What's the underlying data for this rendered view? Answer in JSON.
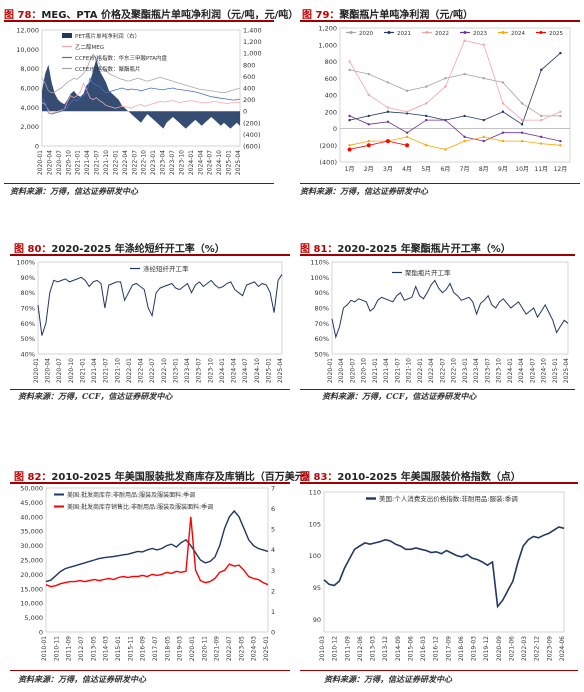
{
  "figures": [
    {
      "id": "f78",
      "fig_label": "图 78：",
      "title": "MEG、PTA 价格及聚酯瓶片单吨净利润（元/吨，元/吨）",
      "source": "资料来源：万得，信达证券研发中心"
    },
    {
      "id": "f79",
      "fig_label": "图 79：",
      "title": "聚酯瓶片单吨净利润（元/吨）",
      "source": "资料来源：万得，信达证券研发中心"
    },
    {
      "id": "f80",
      "fig_label": "图 80：",
      "title": "2020-2025 年涤纶短纤开工率（%）",
      "source": "资料来源：万得，CCF，信达证券研发中心"
    },
    {
      "id": "f81",
      "fig_label": "图 81：",
      "title": "2020-2025 年聚酯瓶片开工率（%）",
      "source": "资料来源：万得，CCF，信达证券研发中心"
    },
    {
      "id": "f82",
      "fig_label": "图 82：",
      "title": "2010-2025 年美国服装批发商库存及库销比（百万美元）",
      "source": "资料来源：万得，信达证券研发中心"
    },
    {
      "id": "f83",
      "fig_label": "图 83：",
      "title": "2010-2025 年美国服装价格指数（点）",
      "source": "资料来源：万得，信达证券研发中心"
    }
  ],
  "colors": {
    "accent": "#c00000",
    "navy": "#1f3864",
    "red": "#ff0000",
    "pink": "#f4a6a6",
    "blue": "#4472c4",
    "gray": "#a6a6a6"
  },
  "chart_data": [
    {
      "id": "f78",
      "type": "line",
      "x_ticks": [
        "2020-01",
        "2020-04",
        "2020-07",
        "2020-10",
        "2021-01",
        "2021-04",
        "2021-07",
        "2021-10",
        "2022-01",
        "2022-04",
        "2022-07",
        "2022-10",
        "2023-01",
        "2023-04",
        "2023-07",
        "2023-10",
        "2024-01",
        "2024-04",
        "2024-07",
        "2024-10",
        "2025-01",
        "2025-04"
      ],
      "y_left": {
        "ticks": [
          "12,000",
          "10,000",
          "8,000",
          "6,000",
          "4,000",
          "2,000",
          "0"
        ],
        "range": [
          0,
          12000
        ]
      },
      "y_right": {
        "ticks": [
          "1,400",
          "1,200",
          "1,000",
          "800",
          "600",
          "400",
          "200",
          "0",
          "(200)",
          "(400)",
          "(600)"
        ],
        "range": [
          -600,
          1400
        ]
      },
      "series": [
        {
          "name": "PET瓶片单吨净利润（右）",
          "axis": "right",
          "kind": "area",
          "color": "#1f3864",
          "values": [
            350,
            650,
            800,
            500,
            300,
            200,
            150,
            120,
            200,
            300,
            350,
            280,
            250,
            300,
            450,
            500,
            700,
            900,
            700,
            600,
            500,
            350,
            300,
            250,
            200,
            100,
            50,
            0,
            -50,
            -100,
            -150,
            -200,
            -120,
            -50,
            -100,
            -150,
            -200,
            -250,
            -300,
            -200,
            -150,
            -100,
            -150,
            -200,
            -250,
            -300,
            -250,
            -200,
            -150,
            -200,
            -250,
            -200,
            -150,
            -100,
            -150,
            -200,
            -250,
            -200,
            -250,
            -300,
            -250,
            -200,
            -250
          ]
        },
        {
          "name": "乙二醇MEG",
          "axis": "left",
          "kind": "line",
          "color": "#f4a6a6",
          "values": [
            4500,
            4300,
            3700,
            3400,
            3500,
            3600,
            3700,
            3800,
            4600,
            5200,
            5000,
            5200,
            5600,
            6500,
            5800,
            5000,
            4800,
            5000,
            4700,
            4500,
            4200,
            4100,
            4000,
            3900,
            4000,
            4100,
            4050,
            4000,
            3900,
            4100,
            4200,
            4300,
            4100,
            4200,
            4300,
            4400,
            4500,
            4600,
            4550,
            4600,
            4650,
            4700,
            4600,
            4500,
            4550,
            4600,
            4650,
            4700,
            4600,
            4550,
            4500,
            4450,
            4500,
            4550,
            4600,
            4550,
            4500,
            4450,
            4400,
            4450,
            4500,
            4550,
            4500
          ]
        },
        {
          "name": "CCFEI价格指数：华东三甲酸PTA内盘",
          "axis": "left",
          "kind": "line",
          "color": "#4472c4",
          "values": [
            4900,
            4500,
            3400,
            3300,
            3400,
            3500,
            3600,
            3800,
            4000,
            4500,
            4800,
            4700,
            5000,
            5200,
            5500,
            7000,
            6500,
            6300,
            6200,
            5800,
            5500,
            5600,
            5700,
            5800,
            5900,
            6000,
            5900,
            5800,
            5900,
            5850,
            5800,
            5700,
            5800,
            5900,
            6000,
            5950,
            5900,
            5850,
            5800,
            5900,
            5950,
            6000,
            5900,
            5850,
            5800,
            5750,
            5700,
            5650,
            5600,
            5500,
            5400,
            5300,
            5200,
            5100,
            5050,
            5000,
            4950,
            4900,
            4850,
            4800,
            4750,
            4800,
            4850
          ]
        },
        {
          "name": "CCFEI价格指数：聚酯瓶片",
          "axis": "left",
          "kind": "line",
          "color": "#a6a6a6",
          "values": [
            7000,
            6500,
            5700,
            5500,
            5600,
            5800,
            6000,
            6300,
            6600,
            6800,
            7000,
            6900,
            7200,
            7500,
            8000,
            8800,
            9500,
            9000,
            8500,
            8000,
            7800,
            7500,
            7300,
            7200,
            7000,
            6900,
            6800,
            6700,
            6800,
            6900,
            7000,
            6900,
            6800,
            6700,
            6800,
            6900,
            7000,
            7100,
            7000,
            6900,
            6800,
            6700,
            6600,
            6500,
            6400,
            6300,
            6200,
            6100,
            6000,
            5900,
            5850,
            5800,
            5750,
            5700,
            5650,
            5600,
            5550,
            5500,
            5600,
            5700,
            5800,
            5900,
            5950
          ]
        }
      ]
    },
    {
      "id": "f79",
      "type": "line",
      "x_ticks": [
        "1月",
        "2月",
        "3月",
        "4月",
        "5月",
        "6月",
        "7月",
        "8月",
        "9月",
        "10月",
        "11月",
        "12月"
      ],
      "y": {
        "ticks": [
          "1,200",
          "1,000",
          "800",
          "600",
          "400",
          "200",
          "0",
          "(200)",
          "(400)"
        ],
        "range": [
          -400,
          1200
        ]
      },
      "series": [
        {
          "name": "2020",
          "color": "#a6a6a6",
          "values": [
            700,
            650,
            550,
            450,
            500,
            600,
            650,
            600,
            550,
            300,
            150,
            150
          ]
        },
        {
          "name": "2021",
          "color": "#1f3864",
          "values": [
            100,
            150,
            200,
            180,
            150,
            100,
            150,
            100,
            200,
            50,
            700,
            900
          ]
        },
        {
          "name": "2022",
          "color": "#f4a6a6",
          "values": [
            800,
            400,
            250,
            200,
            300,
            500,
            1050,
            1000,
            300,
            100,
            100,
            200
          ]
        },
        {
          "name": "2023",
          "color": "#7030a0",
          "values": [
            150,
            50,
            80,
            -50,
            100,
            100,
            -100,
            -150,
            -50,
            -50,
            -100,
            -150
          ]
        },
        {
          "name": "2024",
          "color": "#ffa500",
          "values": [
            -200,
            -150,
            -150,
            -100,
            -200,
            -250,
            -150,
            -100,
            -150,
            -150,
            -180,
            -200
          ]
        },
        {
          "name": "2025",
          "color": "#ff0000",
          "values": [
            -250,
            -200,
            -150,
            -200
          ]
        }
      ]
    },
    {
      "id": "f80",
      "type": "line",
      "x_ticks": [
        "2020-01",
        "2020-04",
        "2020-07",
        "2020-10",
        "2021-01",
        "2021-04",
        "2021-07",
        "2021-10",
        "2022-01",
        "2022-04",
        "2022-07",
        "2022-10",
        "2023-01",
        "2023-04",
        "2023-07",
        "2023-10",
        "2024-01",
        "2024-04",
        "2024-07",
        "2024-10",
        "2025-01",
        "2025-04"
      ],
      "y": {
        "ticks": [
          "100%",
          "90%",
          "80%",
          "70%",
          "60%",
          "50%",
          "40%"
        ],
        "range": [
          40,
          100
        ]
      },
      "series": [
        {
          "name": "涤纶短纤开工率",
          "color": "#1f3864",
          "values": [
            72,
            52,
            60,
            80,
            88,
            87,
            88,
            89,
            87,
            88,
            89,
            90,
            88,
            84,
            87,
            88,
            86,
            70,
            85,
            86,
            87,
            87,
            75,
            80,
            85,
            86,
            84,
            82,
            70,
            65,
            80,
            83,
            84,
            85,
            86,
            83,
            82,
            84,
            86,
            80,
            85,
            87,
            84,
            86,
            88,
            85,
            83,
            84,
            86,
            87,
            82,
            80,
            78,
            85,
            86,
            87,
            84,
            86,
            85,
            80,
            67,
            88,
            92
          ]
        }
      ]
    },
    {
      "id": "f81",
      "type": "line",
      "x_ticks": [
        "2020-01",
        "2020-04",
        "2020-07",
        "2020-10",
        "2021-01",
        "2021-04",
        "2021-07",
        "2021-10",
        "2022-01",
        "2022-04",
        "2022-07",
        "2022-10",
        "2023-01",
        "2023-04",
        "2023-07",
        "2023-10",
        "2024-01",
        "2024-04",
        "2024-07",
        "2024-10",
        "2025-01",
        "2025-04"
      ],
      "y": {
        "ticks": [
          "110%",
          "100%",
          "90%",
          "80%",
          "70%",
          "60%",
          "50%"
        ],
        "range": [
          50,
          110
        ]
      },
      "series": [
        {
          "name": "聚酯瓶片开工率",
          "color": "#1f3864",
          "values": [
            73,
            61,
            68,
            80,
            82,
            85,
            84,
            86,
            85,
            84,
            78,
            80,
            85,
            87,
            86,
            85,
            84,
            88,
            90,
            85,
            86,
            87,
            94,
            88,
            86,
            90,
            95,
            98,
            93,
            90,
            92,
            96,
            90,
            88,
            85,
            86,
            87,
            84,
            76,
            83,
            85,
            88,
            82,
            80,
            84,
            86,
            83,
            80,
            82,
            84,
            80,
            76,
            78,
            80,
            74,
            78,
            82,
            77,
            72,
            64,
            68,
            72,
            70
          ]
        }
      ]
    },
    {
      "id": "f82",
      "type": "line",
      "x_ticks": [
        "2010-01",
        "2010-11",
        "2011-09",
        "2012-07",
        "2013-05",
        "2014-03",
        "2015-01",
        "2015-11",
        "2016-09",
        "2017-07",
        "2018-05",
        "2019-03",
        "2020-01",
        "2020-11",
        "2021-09",
        "2022-07",
        "2023-05",
        "2024-03",
        "2025-01"
      ],
      "y_left": {
        "ticks": [
          "50,000",
          "45,000",
          "40,000",
          "35,000",
          "30,000",
          "25,000",
          "20,000",
          "15,000",
          "10,000",
          "5,000",
          "0"
        ],
        "range": [
          0,
          50000
        ]
      },
      "y_right": {
        "ticks": [
          "7",
          "6",
          "5",
          "4",
          "3",
          "2",
          "1",
          "0"
        ],
        "range": [
          0,
          7
        ]
      },
      "series": [
        {
          "name": "美国:批发商库存:非耐用品:服装及服装面料:季调",
          "axis": "left",
          "color": "#1f3864",
          "values": [
            17500,
            18000,
            19500,
            21000,
            22000,
            22500,
            23000,
            23500,
            24000,
            24500,
            25000,
            25500,
            25800,
            26000,
            26200,
            26500,
            26800,
            27000,
            27500,
            28000,
            27800,
            28500,
            29000,
            28500,
            29000,
            30000,
            30500,
            29500,
            31000,
            32000,
            30000,
            27500,
            25000,
            24000,
            24500,
            26000,
            30000,
            36000,
            40000,
            42000,
            40000,
            36000,
            32000,
            30000,
            29000,
            28500,
            28000
          ]
        },
        {
          "name": "美国:批发商库存销售比:非耐用品:服装及服装面料:季调",
          "axis": "right",
          "color": "#ff0000",
          "values": [
            2.3,
            2.2,
            2.25,
            2.35,
            2.4,
            2.45,
            2.45,
            2.5,
            2.45,
            2.5,
            2.55,
            2.5,
            2.55,
            2.6,
            2.55,
            2.65,
            2.7,
            2.65,
            2.7,
            2.7,
            2.75,
            2.7,
            2.8,
            2.75,
            2.8,
            2.9,
            2.85,
            2.95,
            2.9,
            2.95,
            5.6,
            3.0,
            2.5,
            2.4,
            2.45,
            2.6,
            2.9,
            3.0,
            3.3,
            3.2,
            3.25,
            3.0,
            2.7,
            2.6,
            2.55,
            2.4,
            2.3
          ]
        }
      ]
    },
    {
      "id": "f83",
      "type": "line",
      "x_ticks": [
        "2010-03",
        "2010-12",
        "2011-09",
        "2012-06",
        "2013-03",
        "2013-12",
        "2014-09",
        "2015-06",
        "2016-03",
        "2016-12",
        "2017-09",
        "2018-06",
        "2019-03",
        "2019-12",
        "2020-09",
        "2021-06",
        "2022-03",
        "2022-12",
        "2023-09",
        "2024-06"
      ],
      "y": {
        "ticks": [
          "110",
          "105",
          "100",
          "95",
          "90"
        ],
        "range": [
          88,
          110
        ]
      },
      "series": [
        {
          "name": "美国:个人消费支出价格指数:非耐用品:服装:季调",
          "color": "#1f3864",
          "values": [
            96.2,
            95.5,
            95.3,
            96,
            98,
            99.5,
            101,
            101.5,
            102,
            101.8,
            102,
            102.2,
            102.5,
            102.3,
            101.8,
            101.5,
            101,
            101,
            101.2,
            101,
            100.8,
            100.5,
            100.6,
            100.3,
            100.8,
            100.4,
            100,
            99.8,
            100.2,
            99.6,
            99.4,
            99,
            98.5,
            99,
            92,
            93,
            94.5,
            96,
            99,
            101.5,
            102.5,
            103,
            102.8,
            103.2,
            103.5,
            104,
            104.5,
            104.3
          ]
        }
      ]
    }
  ]
}
